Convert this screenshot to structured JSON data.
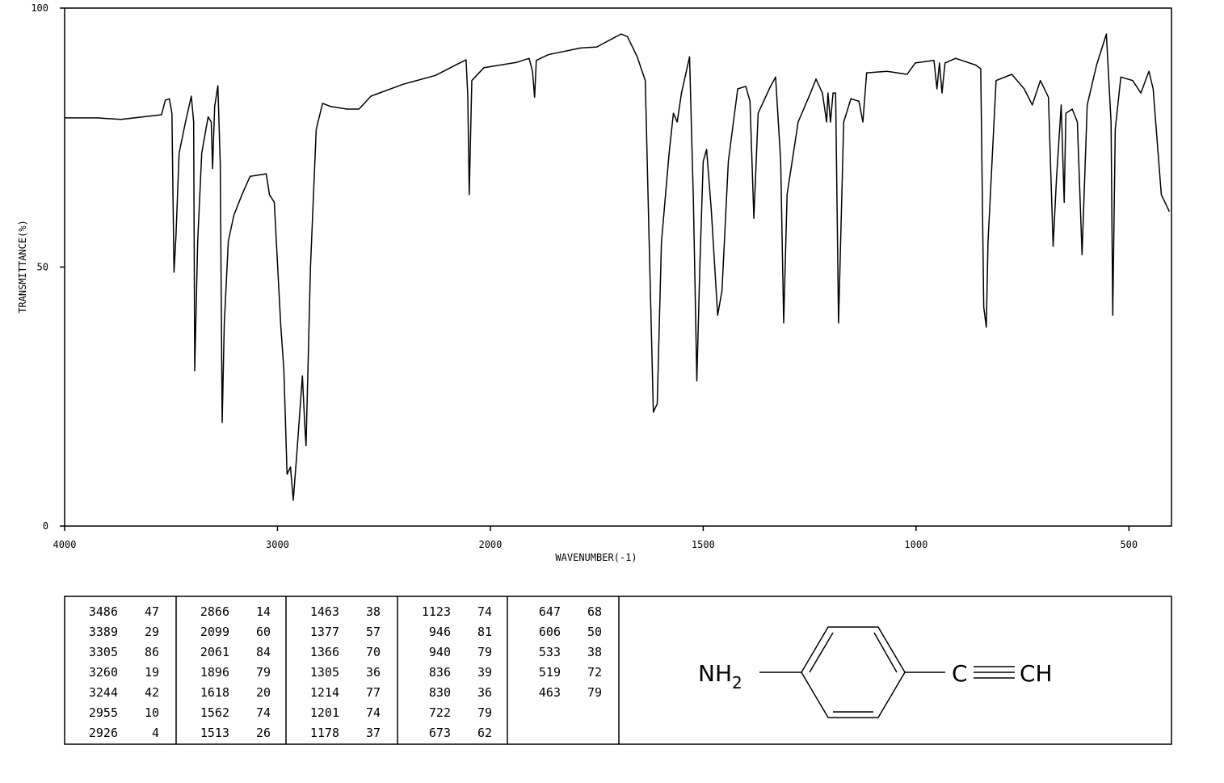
{
  "chart_data": {
    "type": "line",
    "xlabel": "WAVENUMBER(-1)",
    "ylabel": "TRANSMITTANCE(%)",
    "xlim": [
      4000,
      400
    ],
    "x_scale_break": 2000,
    "x_scale_factor": 2,
    "xticks": [
      4000,
      3000,
      2000,
      1500,
      1000,
      500
    ],
    "ylim": [
      0,
      100
    ],
    "yticks": [
      0,
      50,
      100
    ],
    "color": "#000000",
    "x": [
      4000,
      3848,
      3735,
      3545,
      3527,
      3508,
      3496,
      3489,
      3486,
      3477,
      3462,
      3432,
      3405,
      3394,
      3389,
      3375,
      3356,
      3326,
      3311,
      3305,
      3295,
      3280,
      3269,
      3260,
      3250,
      3231,
      3205,
      3167,
      3129,
      3053,
      3038,
      3015,
      2985,
      2970,
      2955,
      2939,
      2926,
      2909,
      2883,
      2871,
      2866,
      2845,
      2818,
      2788,
      2750,
      2674,
      2617,
      2561,
      2409,
      2258,
      2144,
      2114,
      2106,
      2099,
      2087,
      2030,
      1939,
      1909,
      1901,
      1896,
      1892,
      1864,
      1788,
      1750,
      1693,
      1678,
      1655,
      1636,
      1627,
      1617,
      1608,
      1598,
      1580,
      1570,
      1561,
      1551,
      1532,
      1523,
      1515,
      1508,
      1500,
      1492,
      1481,
      1466,
      1456,
      1441,
      1419,
      1400,
      1390,
      1381,
      1371,
      1343,
      1330,
      1318,
      1311,
      1303,
      1277,
      1248,
      1235,
      1220,
      1210,
      1207,
      1201,
      1195,
      1189,
      1182,
      1170,
      1153,
      1134,
      1125,
      1116,
      1068,
      1021,
      1002,
      958,
      951,
      945,
      939,
      932,
      907,
      860,
      848,
      841,
      835,
      831,
      812,
      775,
      746,
      727,
      708,
      689,
      678,
      670,
      659,
      652,
      648,
      633,
      621,
      610,
      598,
      576,
      553,
      542,
      538,
      532,
      519,
      491,
      472,
      453,
      443,
      424,
      405
    ],
    "values": [
      78.8,
      78.8,
      78.5,
      79.4,
      82.2,
      82.5,
      79.7,
      57.9,
      49,
      56,
      72,
      78,
      83,
      78,
      30,
      55,
      72,
      79,
      78,
      69,
      81,
      85,
      70,
      20,
      39,
      55,
      60,
      64,
      67.5,
      68,
      64,
      62.5,
      39,
      30,
      10,
      11.4,
      5,
      14,
      29,
      19,
      15.5,
      50,
      76.6,
      81.6,
      81,
      80.5,
      80.5,
      83,
      85.3,
      87,
      89.4,
      90,
      83,
      64,
      86,
      88.5,
      89.5,
      90.3,
      87.8,
      82.8,
      89.9,
      91,
      92.3,
      92.5,
      95,
      94.5,
      90.6,
      86,
      54.8,
      22,
      23.6,
      54.8,
      72,
      79.7,
      78,
      83.6,
      90.6,
      62.5,
      28,
      50,
      70.4,
      72.7,
      61,
      40.7,
      45.4,
      70.4,
      84.4,
      84.9,
      82,
      59.4,
      79.7,
      84.7,
      86.7,
      70.4,
      39.2,
      64,
      78,
      83.6,
      86.3,
      83.6,
      78,
      83.6,
      78,
      83.6,
      83.6,
      39.2,
      78,
      82.5,
      82,
      78,
      87.5,
      87.8,
      87.2,
      89.4,
      89.9,
      84.4,
      89.4,
      83.6,
      89.4,
      90.3,
      89,
      88.3,
      42.3,
      38.4,
      54.8,
      86,
      87.2,
      84.4,
      81.3,
      86,
      82.8,
      54,
      67.2,
      81.3,
      62.5,
      79.7,
      80.5,
      78,
      52.4,
      81.3,
      89,
      95,
      78,
      40.7,
      76.6,
      86.7,
      86,
      83.6,
      87.8,
      84.4,
      64,
      60.7
    ]
  },
  "peak_table": [
    [
      [
        3486,
        47
      ],
      [
        3389,
        29
      ],
      [
        3305,
        86
      ],
      [
        3260,
        19
      ],
      [
        3244,
        42
      ],
      [
        2955,
        10
      ],
      [
        2926,
        4
      ]
    ],
    [
      [
        2866,
        14
      ],
      [
        2099,
        60
      ],
      [
        2061,
        84
      ],
      [
        1896,
        79
      ],
      [
        1618,
        20
      ],
      [
        1562,
        74
      ],
      [
        1513,
        26
      ]
    ],
    [
      [
        1463,
        38
      ],
      [
        1377,
        57
      ],
      [
        1366,
        70
      ],
      [
        1305,
        36
      ],
      [
        1214,
        77
      ],
      [
        1201,
        74
      ],
      [
        1178,
        37
      ]
    ],
    [
      [
        1123,
        74
      ],
      [
        946,
        81
      ],
      [
        940,
        79
      ],
      [
        836,
        39
      ],
      [
        830,
        36
      ],
      [
        722,
        79
      ],
      [
        673,
        62
      ]
    ],
    [
      [
        647,
        68
      ],
      [
        606,
        50
      ],
      [
        533,
        38
      ],
      [
        519,
        72
      ],
      [
        463,
        79
      ]
    ]
  ],
  "structure": {
    "amine": "NH",
    "amine_subscript": "2",
    "alkyne_c": "C",
    "alkyne_ch": "CH"
  }
}
